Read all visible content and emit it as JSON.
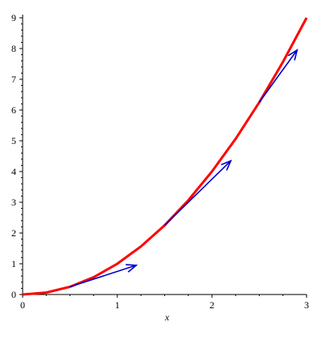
{
  "chart_data": {
    "type": "line",
    "title": "",
    "xlabel": "x",
    "ylabel": "",
    "xlim": [
      0,
      3
    ],
    "ylim": [
      0,
      9
    ],
    "x_ticks": [
      "0",
      "1",
      "2",
      "3"
    ],
    "y_ticks": [
      "0",
      "1",
      "2",
      "3",
      "4",
      "5",
      "6",
      "7",
      "8",
      "9"
    ],
    "grid": false,
    "curve": {
      "color": "#ff0000",
      "x": [
        0,
        0.25,
        0.5,
        0.75,
        1,
        1.25,
        1.5,
        1.75,
        2,
        2.25,
        2.5,
        2.75,
        3
      ],
      "y": [
        0,
        0.0625,
        0.25,
        0.5625,
        1,
        1.5625,
        2.25,
        3.0625,
        4,
        5.0625,
        6.25,
        7.5625,
        9
      ]
    },
    "tangent_vectors": {
      "color": "#0000cc",
      "items": [
        {
          "x0": 0.5,
          "y0": 0.25,
          "x1": 1.2,
          "y1": 0.95
        },
        {
          "x0": 1.5,
          "y0": 2.25,
          "x1": 2.2,
          "y1": 4.35
        },
        {
          "x0": 2.5,
          "y0": 6.25,
          "x1": 2.9,
          "y1": 7.95
        }
      ]
    }
  }
}
